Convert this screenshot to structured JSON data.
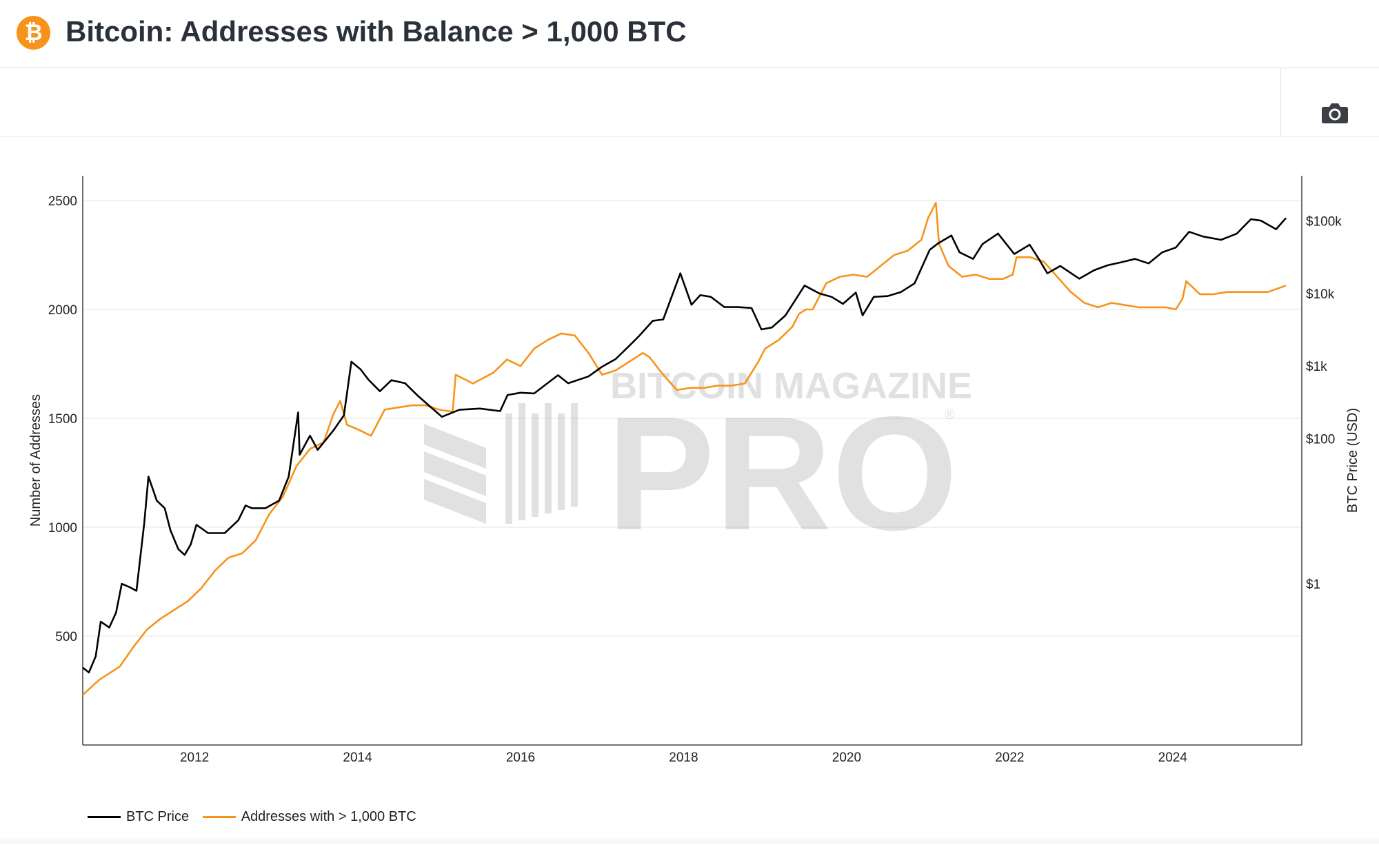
{
  "header": {
    "logo_glyph": "₿",
    "logo_color": "#f7931a",
    "title": "Bitcoin: Addresses with Balance > 1,000 BTC"
  },
  "toolbar": {
    "camera_icon": "camera-icon"
  },
  "watermark": {
    "line1": "BITCOIN MAGAZINE",
    "line2": "PRO",
    "registered": "®"
  },
  "chart_data": {
    "type": "line",
    "title": "",
    "xlabel": "",
    "ylabel": "Number of Addresses",
    "y2label": "BTC Price (USD)",
    "ylim": [
      0,
      2614
    ],
    "y2_scale": "log",
    "y2lim": [
      0.006,
      420000
    ],
    "xlim": [
      "2010-08-18",
      "2025-08-01"
    ],
    "x_ticks": [
      "2012",
      "2014",
      "2016",
      "2018",
      "2020",
      "2022",
      "2024"
    ],
    "y_ticks": [
      "500",
      "1000",
      "1500",
      "2000",
      "2500"
    ],
    "y2_ticks": [
      "$1",
      "$100",
      "$1k",
      "$10k",
      "$100k"
    ],
    "grid": true,
    "legend_position": "bottom-left",
    "colors": {
      "price": "#000000",
      "addresses": "#f7931a"
    },
    "series": [
      {
        "name": "BTC Price",
        "axis": "right",
        "x": [
          "2010-08-18",
          "2010-09-15",
          "2010-10-15",
          "2010-11-07",
          "2010-12-15",
          "2011-01-15",
          "2011-02-10",
          "2011-03-15",
          "2011-04-15",
          "2011-05-20",
          "2011-06-08",
          "2011-07-15",
          "2011-08-20",
          "2011-09-15",
          "2011-10-20",
          "2011-11-18",
          "2011-12-15",
          "2012-01-10",
          "2012-03-01",
          "2012-05-15",
          "2012-07-15",
          "2012-08-17",
          "2012-09-15",
          "2012-11-15",
          "2013-01-15",
          "2013-02-28",
          "2013-04-09",
          "2013-04-16",
          "2013-06-01",
          "2013-07-05",
          "2013-09-15",
          "2013-11-01",
          "2013-12-04",
          "2014-01-15",
          "2014-02-20",
          "2014-04-10",
          "2014-06-01",
          "2014-08-01",
          "2014-10-01",
          "2015-01-14",
          "2015-04-01",
          "2015-07-01",
          "2015-10-01",
          "2015-11-04",
          "2016-01-01",
          "2016-03-01",
          "2016-06-17",
          "2016-08-01",
          "2016-11-01",
          "2017-01-01",
          "2017-03-01",
          "2017-05-01",
          "2017-06-15",
          "2017-08-15",
          "2017-10-01",
          "2017-12-17",
          "2018-02-06",
          "2018-03-15",
          "2018-05-01",
          "2018-07-01",
          "2018-09-01",
          "2018-11-01",
          "2018-12-15",
          "2019-02-01",
          "2019-04-01",
          "2019-06-26",
          "2019-09-01",
          "2019-10-25",
          "2019-12-15",
          "2020-02-12",
          "2020-03-12",
          "2020-05-01",
          "2020-07-01",
          "2020-09-01",
          "2020-11-01",
          "2021-01-08",
          "2021-02-15",
          "2021-04-14",
          "2021-05-20",
          "2021-07-20",
          "2021-09-01",
          "2021-11-10",
          "2022-01-22",
          "2022-03-30",
          "2022-05-10",
          "2022-06-18",
          "2022-08-15",
          "2022-11-09",
          "2023-01-15",
          "2023-03-15",
          "2023-05-15",
          "2023-07-15",
          "2023-09-15",
          "2023-11-15",
          "2024-01-15",
          "2024-03-14",
          "2024-05-15",
          "2024-08-05",
          "2024-10-15",
          "2024-12-17",
          "2025-02-01",
          "2025-04-08",
          "2025-05-22"
        ],
        "values": [
          0.07,
          0.06,
          0.1,
          0.3,
          0.25,
          0.4,
          1.0,
          0.9,
          0.8,
          7.0,
          30,
          14,
          11,
          5.5,
          3.0,
          2.5,
          3.5,
          6.5,
          5.0,
          5.0,
          7.5,
          12,
          11,
          11,
          14,
          30,
          230,
          60,
          110,
          70,
          130,
          210,
          1150,
          900,
          650,
          450,
          640,
          580,
          380,
          200,
          250,
          260,
          240,
          400,
          430,
          420,
          750,
          580,
          720,
          980,
          1250,
          1900,
          2600,
          4200,
          4400,
          19000,
          7000,
          9500,
          9000,
          6500,
          6500,
          6300,
          3200,
          3400,
          5000,
          12900,
          10000,
          9000,
          7200,
          10300,
          5000,
          9000,
          9200,
          10500,
          13800,
          40000,
          49000,
          63000,
          37000,
          30000,
          48000,
          67000,
          35000,
          47000,
          30000,
          19000,
          24000,
          16000,
          21000,
          24500,
          27000,
          30000,
          26000,
          37000,
          43000,
          71000,
          61000,
          55000,
          67000,
          106000,
          101000,
          77000,
          110000
        ]
      },
      {
        "name": "Addresses with > 1,000 BTC",
        "axis": "left",
        "x": [
          "2010-08-18",
          "2010-11-01",
          "2011-02-01",
          "2011-04-01",
          "2011-06-01",
          "2011-08-01",
          "2011-10-01",
          "2011-12-01",
          "2012-02-01",
          "2012-04-01",
          "2012-06-01",
          "2012-08-01",
          "2012-10-01",
          "2012-12-01",
          "2013-02-01",
          "2013-04-01",
          "2013-06-01",
          "2013-08-01",
          "2013-09-15",
          "2013-10-15",
          "2013-11-15",
          "2014-01-01",
          "2014-03-01",
          "2014-05-01",
          "2014-07-01",
          "2014-09-01",
          "2014-11-01",
          "2015-01-01",
          "2015-03-01",
          "2015-03-15",
          "2015-06-01",
          "2015-09-01",
          "2015-11-01",
          "2016-01-01",
          "2016-03-01",
          "2016-05-01",
          "2016-07-01",
          "2016-09-01",
          "2016-11-01",
          "2017-01-01",
          "2017-03-01",
          "2017-05-01",
          "2017-07-01",
          "2017-08-01",
          "2017-10-01",
          "2017-12-01",
          "2018-02-01",
          "2018-04-01",
          "2018-06-01",
          "2018-08-01",
          "2018-10-01",
          "2018-12-01",
          "2019-01-01",
          "2019-03-01",
          "2019-05-01",
          "2019-06-01",
          "2019-07-01",
          "2019-08-01",
          "2019-10-01",
          "2019-12-01",
          "2020-02-01",
          "2020-04-01",
          "2020-06-01",
          "2020-08-01",
          "2020-10-01",
          "2020-12-01",
          "2021-01-01",
          "2021-02-05",
          "2021-02-20",
          "2021-04-01",
          "2021-06-01",
          "2021-08-01",
          "2021-10-01",
          "2021-12-01",
          "2022-01-15",
          "2022-02-01",
          "2022-04-01",
          "2022-06-01",
          "2022-08-01",
          "2022-10-01",
          "2022-12-01",
          "2023-02-01",
          "2023-04-01",
          "2023-06-01",
          "2023-08-01",
          "2023-10-01",
          "2023-12-01",
          "2024-01-15",
          "2024-02-15",
          "2024-03-01",
          "2024-05-01",
          "2024-07-01",
          "2024-09-01",
          "2024-11-01",
          "2025-01-01",
          "2025-03-01",
          "2025-05-22"
        ],
        "values": [
          230,
          300,
          360,
          450,
          530,
          580,
          620,
          660,
          720,
          800,
          860,
          880,
          940,
          1060,
          1140,
          1280,
          1360,
          1390,
          1520,
          1580,
          1470,
          1450,
          1420,
          1540,
          1550,
          1560,
          1560,
          1540,
          1530,
          1700,
          1660,
          1710,
          1770,
          1740,
          1820,
          1860,
          1890,
          1880,
          1800,
          1700,
          1720,
          1760,
          1800,
          1780,
          1700,
          1630,
          1640,
          1640,
          1650,
          1650,
          1660,
          1760,
          1820,
          1860,
          1920,
          1980,
          2000,
          2000,
          2120,
          2150,
          2160,
          2150,
          2200,
          2250,
          2270,
          2320,
          2420,
          2490,
          2300,
          2200,
          2150,
          2160,
          2140,
          2140,
          2160,
          2240,
          2240,
          2220,
          2150,
          2080,
          2030,
          2010,
          2030,
          2020,
          2010,
          2010,
          2010,
          2000,
          2050,
          2130,
          2070,
          2070,
          2080,
          2080,
          2080,
          2080,
          2110
        ]
      }
    ]
  }
}
